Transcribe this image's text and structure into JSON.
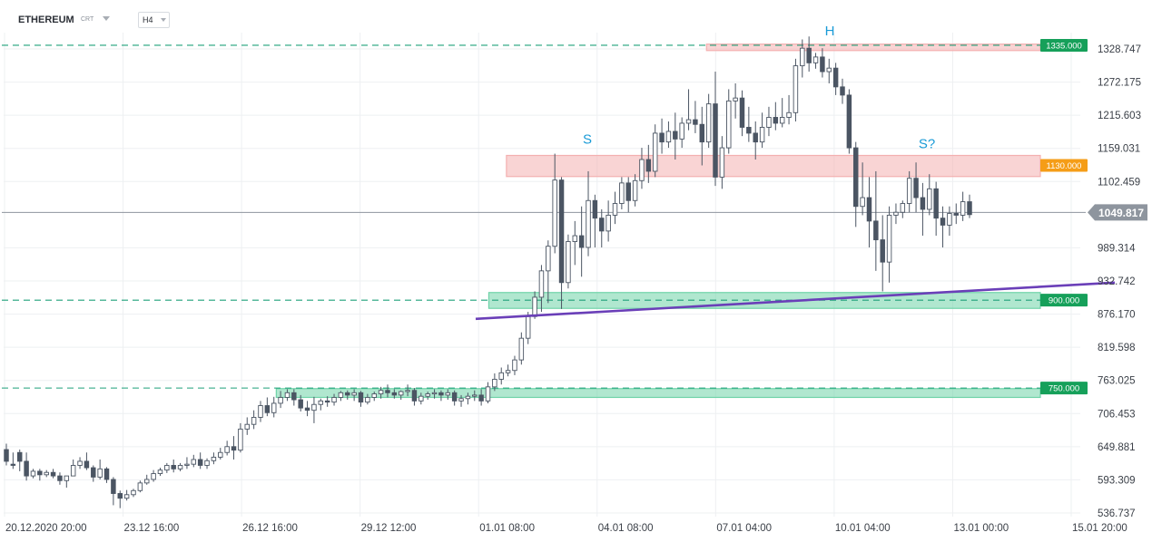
{
  "toolbar": {
    "symbol": "ETHEREUM",
    "type": "CRT",
    "timeframe": "H4"
  },
  "chart_data": {
    "type": "candlestick",
    "title": "",
    "ylim": [
      536.737,
      1352
    ],
    "y_ticks": [
      "1328.747",
      "1272.175",
      "1215.603",
      "1159.031",
      "1102.459",
      "989.314",
      "932.742",
      "876.170",
      "819.598",
      "763.025",
      "706.453",
      "649.881",
      "593.309",
      "536.737"
    ],
    "x_ticks": [
      "20.12.2020  20:00",
      "23.12  16:00",
      "26.12  16:00",
      "29.12  12:00",
      "01.01  08:00",
      "04.01  08:00",
      "07.01  04:00",
      "10.01  04:00",
      "13.01  00:00",
      "15.01  20:00"
    ],
    "current_price": {
      "label": "1049.817",
      "value": 1049.817,
      "color": "#8e959e"
    },
    "levels": [
      {
        "label": "1335.000",
        "value": 1335.0,
        "color": "#16a05a",
        "zone": [
          1326,
          1337
        ],
        "zone_color": "#f4b0b0",
        "zone_from": 0.678
      },
      {
        "label": "1130.000",
        "value": 1130.0,
        "color": "#f59d17",
        "zone": [
          1111,
          1147
        ],
        "zone_color": "#f4b0b0",
        "zone_from": 0.485
      },
      {
        "label": "900.000",
        "value": 900.0,
        "color": "#16a05a",
        "zone": [
          886,
          913
        ],
        "zone_color": "#6fd3a8",
        "zone_from": 0.468
      },
      {
        "label": "750.000",
        "value": 750.0,
        "color": "#16a05a",
        "zone": [
          734,
          749
        ],
        "zone_color": "#6fd3a8",
        "zone_from": 0.263
      }
    ],
    "dashed_levels": [
      1335.0,
      900.0,
      750.0
    ],
    "trendline": {
      "color": "#6a3fb8",
      "from": {
        "t": 0.413,
        "price": 868
      },
      "to": {
        "t": 1.0,
        "price": 930
      }
    },
    "annotations": [
      {
        "text": "S",
        "t": 0.512,
        "price": 1167
      },
      {
        "text": "H",
        "t": 0.721,
        "price": 1352
      },
      {
        "text": "S?",
        "t": 0.803,
        "price": 1159
      }
    ],
    "candle_color_up": "#ffffff",
    "candle_color_down": "#4b5563",
    "candles": [
      [
        645,
        655,
        625,
        618
      ],
      [
        620,
        640,
        618,
        612
      ],
      [
        640,
        645,
        625,
        608
      ],
      [
        625,
        640,
        600,
        592
      ],
      [
        600,
        612,
        608,
        596
      ],
      [
        608,
        612,
        602,
        592
      ],
      [
        602,
        610,
        606,
        598
      ],
      [
        606,
        612,
        600,
        596
      ],
      [
        600,
        606,
        592,
        585
      ],
      [
        592,
        600,
        600,
        580
      ],
      [
        600,
        628,
        618,
        600
      ],
      [
        618,
        632,
        625,
        612
      ],
      [
        625,
        640,
        614,
        610
      ],
      [
        614,
        618,
        598,
        590
      ],
      [
        598,
        628,
        612,
        594
      ],
      [
        612,
        615,
        594,
        588
      ],
      [
        594,
        598,
        570,
        550
      ],
      [
        570,
        575,
        562,
        545
      ],
      [
        562,
        576,
        568,
        558
      ],
      [
        568,
        578,
        575,
        564
      ],
      [
        575,
        592,
        588,
        572
      ],
      [
        588,
        602,
        594,
        585
      ],
      [
        594,
        610,
        604,
        590
      ],
      [
        604,
        614,
        610,
        600
      ],
      [
        610,
        622,
        618,
        605
      ],
      [
        618,
        628,
        612,
        606
      ],
      [
        612,
        622,
        618,
        608
      ],
      [
        618,
        632,
        620,
        612
      ],
      [
        620,
        636,
        628,
        615
      ],
      [
        628,
        640,
        618,
        612
      ],
      [
        618,
        630,
        626,
        612
      ],
      [
        626,
        640,
        632,
        620
      ],
      [
        632,
        648,
        640,
        628
      ],
      [
        640,
        660,
        650,
        635
      ],
      [
        650,
        668,
        644,
        628
      ],
      [
        644,
        690,
        680,
        640
      ],
      [
        680,
        700,
        688,
        670
      ],
      [
        688,
        712,
        700,
        680
      ],
      [
        700,
        728,
        720,
        692
      ],
      [
        720,
        734,
        708,
        702
      ],
      [
        708,
        735,
        724,
        700
      ],
      [
        724,
        745,
        734,
        716
      ],
      [
        734,
        748,
        742,
        728
      ],
      [
        742,
        748,
        730,
        720
      ],
      [
        730,
        738,
        716,
        710
      ],
      [
        716,
        728,
        712,
        702
      ],
      [
        712,
        735,
        722,
        690
      ],
      [
        722,
        732,
        728,
        712
      ],
      [
        728,
        736,
        726,
        718
      ],
      [
        726,
        740,
        734,
        720
      ],
      [
        734,
        745,
        742,
        728
      ],
      [
        742,
        746,
        738,
        730
      ],
      [
        738,
        748,
        742,
        728
      ],
      [
        742,
        745,
        726,
        718
      ],
      [
        726,
        740,
        734,
        722
      ],
      [
        734,
        744,
        740,
        728
      ],
      [
        740,
        752,
        746,
        732
      ],
      [
        746,
        756,
        742,
        734
      ],
      [
        742,
        748,
        738,
        732
      ],
      [
        738,
        746,
        744,
        730
      ],
      [
        744,
        756,
        746,
        736
      ],
      [
        746,
        750,
        728,
        720
      ],
      [
        728,
        742,
        736,
        722
      ],
      [
        736,
        744,
        740,
        730
      ],
      [
        740,
        748,
        742,
        732
      ],
      [
        742,
        746,
        738,
        728
      ],
      [
        738,
        748,
        742,
        730
      ],
      [
        742,
        746,
        728,
        720
      ],
      [
        728,
        738,
        732,
        718
      ],
      [
        732,
        742,
        736,
        722
      ],
      [
        736,
        746,
        738,
        728
      ],
      [
        738,
        748,
        728,
        720
      ],
      [
        728,
        760,
        752,
        724
      ],
      [
        752,
        775,
        765,
        745
      ],
      [
        765,
        785,
        776,
        756
      ],
      [
        776,
        790,
        780,
        770
      ],
      [
        780,
        805,
        798,
        772
      ],
      [
        798,
        845,
        835,
        790
      ],
      [
        835,
        880,
        872,
        825
      ],
      [
        872,
        915,
        905,
        868
      ],
      [
        905,
        960,
        950,
        880
      ],
      [
        950,
        1002,
        992,
        895
      ],
      [
        992,
        1150,
        1105,
        980
      ],
      [
        1105,
        1110,
        930,
        885
      ],
      [
        930,
        1012,
        1000,
        920
      ],
      [
        1000,
        1035,
        1010,
        960
      ],
      [
        1010,
        1060,
        990,
        940
      ],
      [
        990,
        1120,
        1070,
        975
      ],
      [
        1070,
        1080,
        1040,
        990
      ],
      [
        1040,
        1055,
        1018,
        990
      ],
      [
        1018,
        1070,
        1045,
        1000
      ],
      [
        1045,
        1085,
        1065,
        1030
      ],
      [
        1065,
        1110,
        1100,
        1055
      ],
      [
        1100,
        1110,
        1070,
        1050
      ],
      [
        1070,
        1115,
        1104,
        1060
      ],
      [
        1104,
        1160,
        1140,
        1090
      ],
      [
        1140,
        1165,
        1120,
        1100
      ],
      [
        1120,
        1200,
        1185,
        1110
      ],
      [
        1185,
        1210,
        1170,
        1150
      ],
      [
        1170,
        1205,
        1188,
        1160
      ],
      [
        1188,
        1220,
        1175,
        1140
      ],
      [
        1175,
        1212,
        1202,
        1160
      ],
      [
        1202,
        1260,
        1208,
        1190
      ],
      [
        1208,
        1240,
        1200,
        1185
      ],
      [
        1200,
        1230,
        1170,
        1130
      ],
      [
        1170,
        1252,
        1235,
        1160
      ],
      [
        1235,
        1290,
        1110,
        1095
      ],
      [
        1110,
        1180,
        1160,
        1090
      ],
      [
        1160,
        1260,
        1240,
        1150
      ],
      [
        1240,
        1270,
        1245,
        1210
      ],
      [
        1245,
        1258,
        1195,
        1180
      ],
      [
        1195,
        1230,
        1185,
        1170
      ],
      [
        1185,
        1205,
        1170,
        1140
      ],
      [
        1170,
        1220,
        1195,
        1160
      ],
      [
        1195,
        1230,
        1212,
        1180
      ],
      [
        1212,
        1238,
        1202,
        1190
      ],
      [
        1202,
        1245,
        1212,
        1195
      ],
      [
        1212,
        1250,
        1220,
        1200
      ],
      [
        1220,
        1312,
        1300,
        1205
      ],
      [
        1300,
        1345,
        1330,
        1280
      ],
      [
        1330,
        1350,
        1305,
        1290
      ],
      [
        1305,
        1322,
        1315,
        1295
      ],
      [
        1315,
        1330,
        1290,
        1280
      ],
      [
        1290,
        1312,
        1296,
        1270
      ],
      [
        1296,
        1305,
        1264,
        1250
      ],
      [
        1264,
        1278,
        1250,
        1235
      ],
      [
        1250,
        1260,
        1160,
        1150
      ],
      [
        1160,
        1170,
        1060,
        1025
      ],
      [
        1060,
        1135,
        1075,
        1045
      ],
      [
        1075,
        1110,
        1035,
        990
      ],
      [
        1035,
        1120,
        1003,
        950
      ],
      [
        1003,
        1045,
        965,
        915
      ],
      [
        965,
        1060,
        1045,
        930
      ],
      [
        1045,
        1065,
        1050,
        1030
      ],
      [
        1050,
        1070,
        1065,
        1040
      ],
      [
        1065,
        1120,
        1108,
        1050
      ],
      [
        1108,
        1135,
        1075,
        1050
      ],
      [
        1075,
        1100,
        1055,
        1010
      ],
      [
        1055,
        1115,
        1090,
        1045
      ],
      [
        1090,
        1102,
        1040,
        1010
      ],
      [
        1040,
        1060,
        1028,
        990
      ],
      [
        1028,
        1060,
        1048,
        1010
      ],
      [
        1048,
        1065,
        1045,
        1030
      ],
      [
        1045,
        1085,
        1068,
        1035
      ],
      [
        1068,
        1080,
        1046,
        1040
      ]
    ]
  }
}
